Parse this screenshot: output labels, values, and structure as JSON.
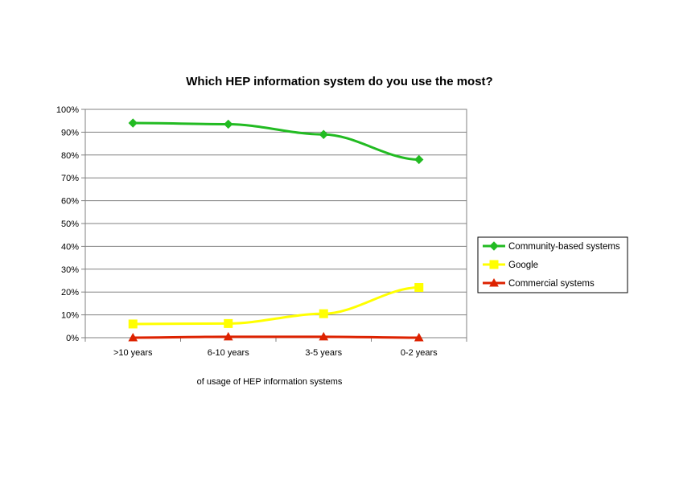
{
  "chart_data": {
    "type": "line",
    "title": "Which HEP information system do you use the most?",
    "xlabel": "of usage of HEP information systems",
    "ylabel": "",
    "categories": [
      ">10 years",
      "6-10 years",
      "3-5 years",
      "0-2 years"
    ],
    "ylim": [
      0,
      100
    ],
    "yticks": [
      "0%",
      "10%",
      "20%",
      "30%",
      "40%",
      "50%",
      "60%",
      "70%",
      "80%",
      "90%",
      "100%"
    ],
    "grid": true,
    "legend_position": "right",
    "series": [
      {
        "name": "Community-based systems",
        "values": [
          94,
          93.5,
          89,
          78
        ],
        "color": "#22bb22",
        "marker": "diamond"
      },
      {
        "name": "Google",
        "values": [
          6,
          6.2,
          10.5,
          22
        ],
        "color": "#ffff00",
        "marker": "square"
      },
      {
        "name": "Commercial systems",
        "values": [
          0,
          0.4,
          0.4,
          0
        ],
        "color": "#dd2200",
        "marker": "triangle"
      }
    ]
  }
}
